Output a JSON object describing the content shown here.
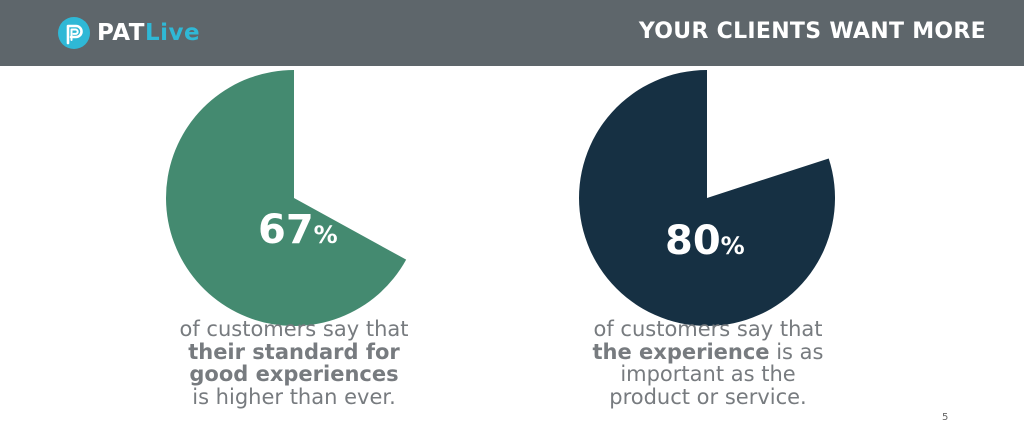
{
  "header": {
    "logo_pat": "PAT",
    "logo_live": "Live",
    "title": "YOUR CLIENTS WANT MORE"
  },
  "colors": {
    "header_bg": "#5e666b",
    "accent_green": "#448a70",
    "accent_navy": "#163043",
    "logo_blue": "#2fb8d6"
  },
  "chart_data": [
    {
      "type": "pie",
      "values": [
        67,
        33
      ],
      "value_label": "67",
      "unit": "%",
      "caption": {
        "line1": "of customers say that",
        "line2_bold": "their standard for",
        "line3_bold": "good experiences",
        "line4": "is higher than ever."
      }
    },
    {
      "type": "pie",
      "values": [
        80,
        20
      ],
      "value_label": "80",
      "unit": "%",
      "caption": {
        "line1": "of customers say that",
        "line2_bold": "the experience",
        "line2_rest": " is as",
        "line3": "important as the",
        "line4": "product or service."
      }
    }
  ],
  "page_number": "5"
}
